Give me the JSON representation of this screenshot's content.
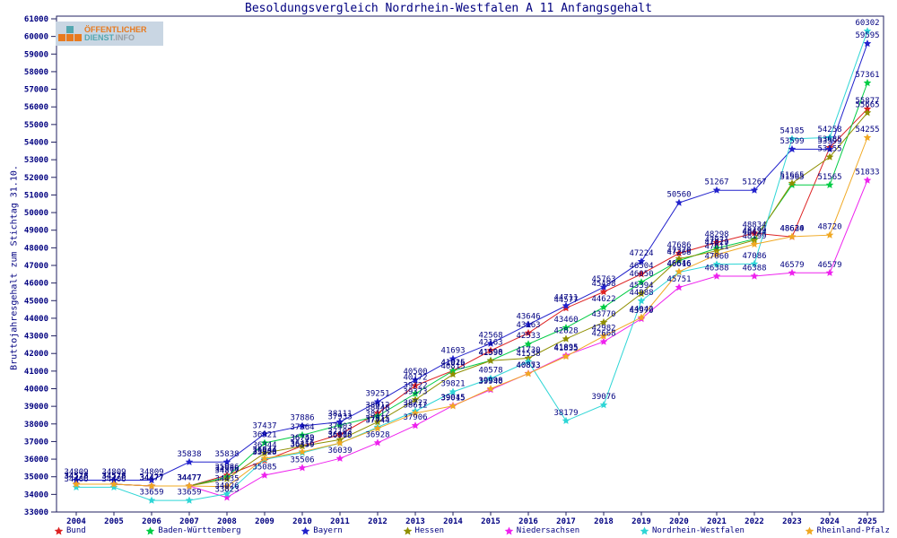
{
  "title": "Besoldungsvergleich Nordrhein-Westfalen A 11 Anfangsgehalt",
  "logo": {
    "line1": "ÖFFENTLICHER",
    "line2_a": "DIENST",
    "line2_b": ".INFO"
  },
  "axis_color": "#202060",
  "label_color": "#000080",
  "chart_data": {
    "type": "line",
    "title": "Besoldungsvergleich Nordrhein-Westfalen A 11 Anfangsgehalt",
    "ylabel": "Bruttojahresgehalt zum Stichtag 31.10.",
    "xlabel": "",
    "ylim": [
      33000,
      61000
    ],
    "ytick_step": 1000,
    "grid": false,
    "legend_position": "bottom",
    "x": [
      2004,
      2005,
      2006,
      2007,
      2008,
      2009,
      2010,
      2011,
      2012,
      2013,
      2014,
      2015,
      2016,
      2017,
      2018,
      2019,
      2020,
      2021,
      2022,
      2023,
      2024,
      2025
    ],
    "series": [
      {
        "name": "Bund",
        "color": "#dd2222",
        "values": [
          34578,
          34578,
          34477,
          34477,
          35086,
          35928,
          36750,
          37403,
          38612,
          40172,
          41026,
          42163,
          43163,
          44577,
          45498,
          46504,
          47686,
          48298,
          48834,
          48620,
          53685,
          55877
        ]
      },
      {
        "name": "Baden-Württemberg",
        "color": "#00cc44",
        "values": [
          34578,
          34578,
          34477,
          34477,
          34986,
          36921,
          37364,
          37933,
          38448,
          39722,
          41015,
          41598,
          42533,
          43460,
          44622,
          46050,
          47268,
          47971,
          48499,
          51565,
          51565,
          57361
        ]
      },
      {
        "name": "Bayern",
        "color": "#2222cc",
        "values": [
          34809,
          34809,
          34809,
          35838,
          35838,
          37437,
          37886,
          38111,
          39251,
          40500,
          41693,
          42568,
          43646,
          44711,
          45763,
          47224,
          50560,
          51267,
          51267,
          53599,
          53599,
          59595
        ]
      },
      {
        "name": "Hessen",
        "color": "#8f8f00",
        "values": [
          34578,
          34578,
          34477,
          34477,
          34877,
          36344,
          36742,
          37103,
          38112,
          39373,
          40815,
          41590,
          41730,
          42828,
          43770,
          45394,
          47370,
          47829,
          48434,
          51665,
          53155,
          55665
        ]
      },
      {
        "name": "Niedersachsen",
        "color": "#ee22ee",
        "values": [
          34578,
          34578,
          34477,
          34477,
          33823,
          35085,
          35506,
          36039,
          36928,
          37906,
          39045,
          39940,
          40873,
          41895,
          42668,
          43970,
          45751,
          46388,
          46388,
          46579,
          46579,
          51833
        ]
      },
      {
        "name": "Nordrhein-Westfalen",
        "color": "#2fd6d6",
        "values": [
          34406,
          34406,
          33659,
          33659,
          34026,
          35986,
          36359,
          36905,
          37815,
          38727,
          39821,
          40578,
          41538,
          38179,
          39076,
          44988,
          46616,
          47060,
          47086,
          54185,
          54258,
          60302
        ]
      },
      {
        "name": "Rheinland-Pfalz",
        "color": "#f0a822",
        "values": [
          34578,
          34578,
          34477,
          34477,
          34435,
          36044,
          36416,
          36916,
          37744,
          38612,
          39015,
          39998,
          40853,
          41835,
          42982,
          44042,
          46646,
          47611,
          48199,
          48634,
          48720,
          54255
        ]
      }
    ]
  },
  "legend": [
    "Bund",
    "Baden-Württemberg",
    "Bayern",
    "Hessen",
    "Niedersachsen",
    "Nordrhein-Westfalen",
    "Rheinland-Pfalz"
  ]
}
